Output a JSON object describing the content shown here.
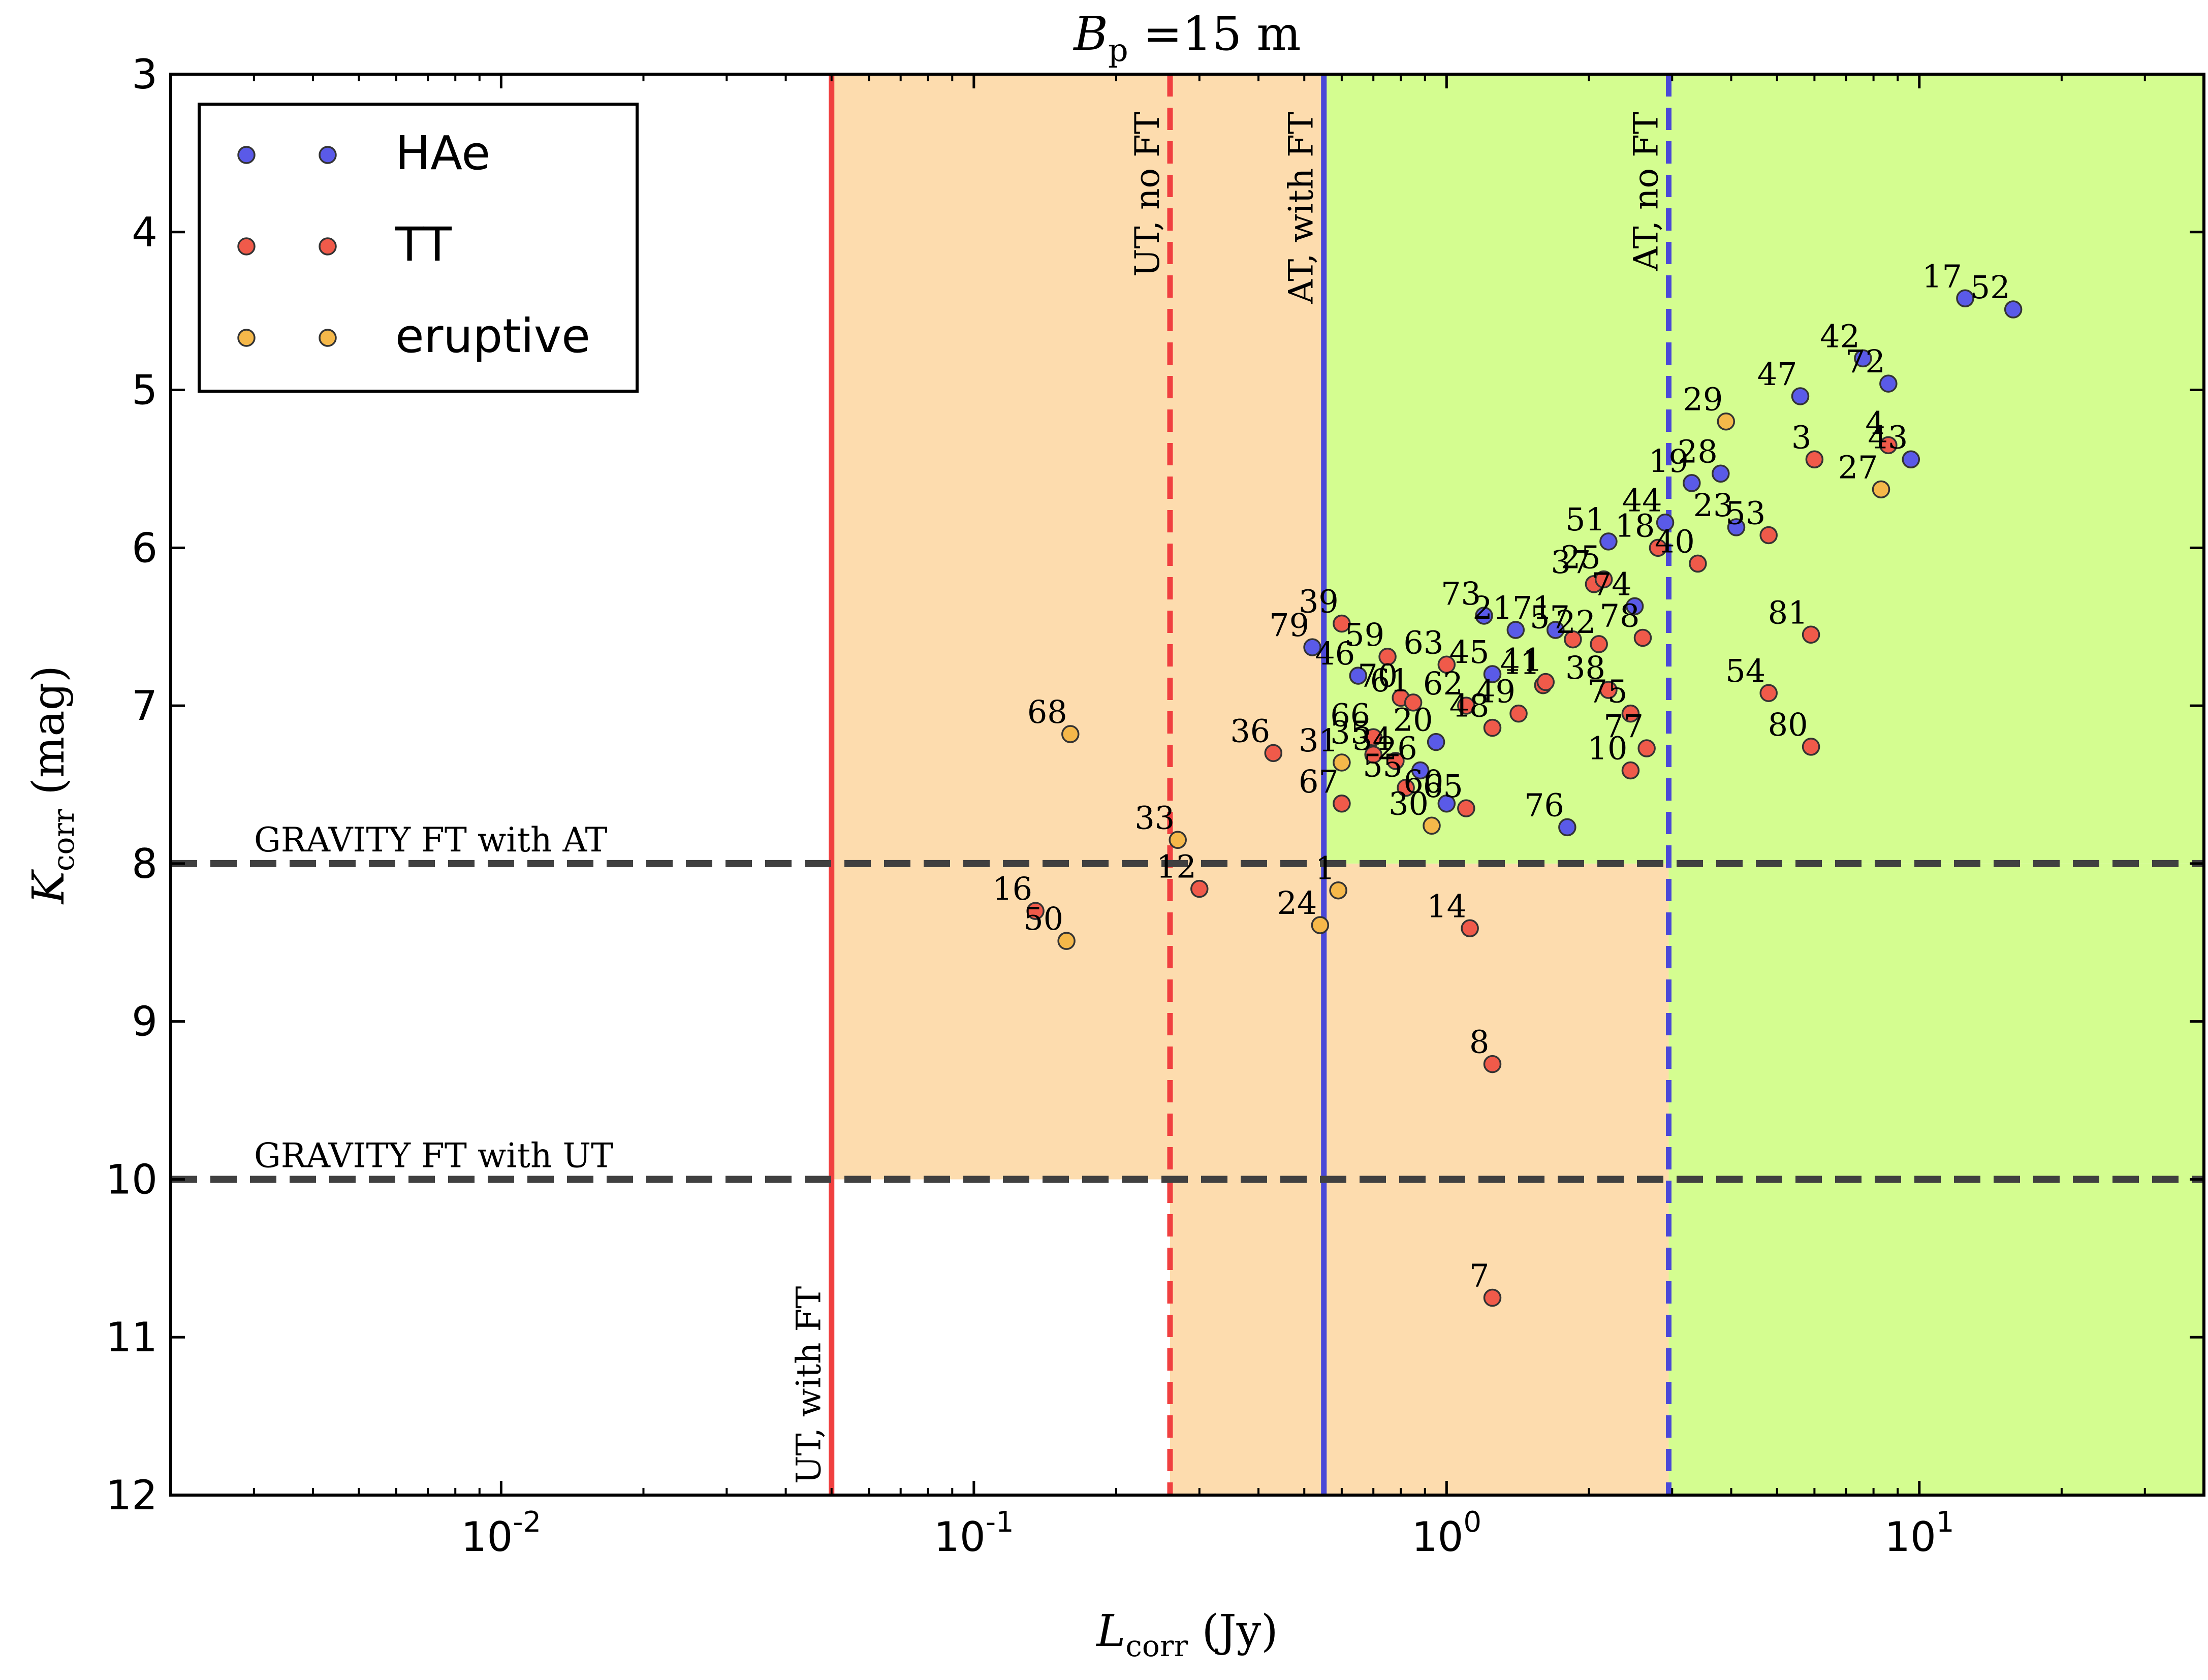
{
  "chart_data": {
    "type": "scatter",
    "title": {
      "main": "B",
      "sub": "p",
      "rest": " =15 m"
    },
    "xlabel": {
      "main": "L",
      "sub": "corr",
      "rest": " (Jy)"
    },
    "ylabel": {
      "main": "K",
      "sub": "corr",
      "rest": " (mag)"
    },
    "x_scale": "log",
    "xlim": [
      0.002,
      40
    ],
    "ylim": [
      12,
      3
    ],
    "y_inverted": true,
    "x_ticks": [
      {
        "value": 0.01,
        "base": "10",
        "exp": "-2"
      },
      {
        "value": 0.1,
        "base": "10",
        "exp": "-1"
      },
      {
        "value": 1,
        "base": "10",
        "exp": "0"
      },
      {
        "value": 10,
        "base": "10",
        "exp": "1"
      }
    ],
    "y_ticks": [
      "3",
      "4",
      "5",
      "6",
      "7",
      "8",
      "9",
      "10",
      "11",
      "12"
    ],
    "legend": {
      "placement": "top-left",
      "entries": [
        "HAe",
        "TT",
        "eruptive"
      ]
    },
    "series_colors": {
      "HAe": "#5a5ae8",
      "TT": "#f05a4a",
      "eruptive": "#f5b84a"
    },
    "regions": [
      {
        "color": "#fddcae",
        "x_from": 0.05,
        "x_to": 0.55,
        "y_from": 3,
        "y_to": 10
      },
      {
        "color": "#fddcae",
        "x_from": 0.26,
        "x_to": 2.95,
        "y_from": 8,
        "y_to": 12
      },
      {
        "color": "#d4fd90",
        "x_from": 0.55,
        "x_to": 40,
        "y_from": 3,
        "y_to": 8
      },
      {
        "color": "#d4fd90",
        "x_from": 2.95,
        "x_to": 40,
        "y_from": 8,
        "y_to": 12
      }
    ],
    "vertical_lines": [
      {
        "x": 0.05,
        "style": "solid",
        "color": "#f04040",
        "label": "UT, with FT",
        "label_pos": "bottom"
      },
      {
        "x": 0.26,
        "style": "dashed",
        "color": "#f04040",
        "label": "UT, no FT",
        "label_pos": "top"
      },
      {
        "x": 0.55,
        "style": "solid",
        "color": "#4a48d8",
        "label": "AT, with FT",
        "label_pos": "top"
      },
      {
        "x": 2.95,
        "style": "dashed",
        "color": "#4a48d8",
        "label": "AT, no FT",
        "label_pos": "top"
      }
    ],
    "horizontal_lines": [
      {
        "y": 8,
        "style": "dashed",
        "color": "#404040",
        "label": "GRAVITY FT with AT"
      },
      {
        "y": 10,
        "style": "dashed",
        "color": "#404040",
        "label": "GRAVITY FT with UT"
      }
    ],
    "points": [
      {
        "id": "17",
        "type": "HAe",
        "x": 12.5,
        "y": 4.42
      },
      {
        "id": "52",
        "type": "HAe",
        "x": 15.8,
        "y": 4.49
      },
      {
        "id": "42",
        "type": "HAe",
        "x": 7.6,
        "y": 4.8
      },
      {
        "id": "72",
        "type": "HAe",
        "x": 8.6,
        "y": 4.96
      },
      {
        "id": "47",
        "type": "HAe",
        "x": 5.6,
        "y": 5.04
      },
      {
        "id": "29",
        "type": "eruptive",
        "x": 3.9,
        "y": 5.2
      },
      {
        "id": "4",
        "type": "TT",
        "x": 8.6,
        "y": 5.35
      },
      {
        "id": "43",
        "type": "HAe",
        "x": 9.6,
        "y": 5.44
      },
      {
        "id": "3",
        "type": "TT",
        "x": 6.0,
        "y": 5.44
      },
      {
        "id": "27",
        "type": "eruptive",
        "x": 8.3,
        "y": 5.63
      },
      {
        "id": "28",
        "type": "HAe",
        "x": 3.8,
        "y": 5.53
      },
      {
        "id": "19",
        "type": "HAe",
        "x": 3.3,
        "y": 5.59
      },
      {
        "id": "23",
        "type": "HAe",
        "x": 4.1,
        "y": 5.87
      },
      {
        "id": "53",
        "type": "TT",
        "x": 4.8,
        "y": 5.92
      },
      {
        "id": "44",
        "type": "HAe",
        "x": 2.9,
        "y": 5.84
      },
      {
        "id": "51",
        "type": "HAe",
        "x": 2.2,
        "y": 5.96
      },
      {
        "id": "18",
        "type": "TT",
        "x": 2.8,
        "y": 6.0
      },
      {
        "id": "40",
        "type": "TT",
        "x": 3.4,
        "y": 6.1
      },
      {
        "id": "37",
        "type": "TT",
        "x": 2.05,
        "y": 6.23
      },
      {
        "id": "25",
        "type": "TT",
        "x": 2.15,
        "y": 6.2
      },
      {
        "id": "74",
        "type": "HAe",
        "x": 2.5,
        "y": 6.37
      },
      {
        "id": "73",
        "type": "HAe",
        "x": 1.2,
        "y": 6.43
      },
      {
        "id": "21",
        "type": "HAe",
        "x": 1.4,
        "y": 6.52
      },
      {
        "id": "71",
        "type": "HAe",
        "x": 1.7,
        "y": 6.52
      },
      {
        "id": "57",
        "type": "TT",
        "x": 1.85,
        "y": 6.58
      },
      {
        "id": "22",
        "type": "TT",
        "x": 2.1,
        "y": 6.61
      },
      {
        "id": "78",
        "type": "TT",
        "x": 2.6,
        "y": 6.57
      },
      {
        "id": "81",
        "type": "TT",
        "x": 5.9,
        "y": 6.55
      },
      {
        "id": "39",
        "type": "TT",
        "x": 0.6,
        "y": 6.48
      },
      {
        "id": "79",
        "type": "HAe",
        "x": 0.52,
        "y": 6.63
      },
      {
        "id": "59",
        "type": "TT",
        "x": 0.75,
        "y": 6.69
      },
      {
        "id": "46",
        "type": "HAe",
        "x": 0.65,
        "y": 6.81
      },
      {
        "id": "63",
        "type": "TT",
        "x": 1.0,
        "y": 6.74
      },
      {
        "id": "45",
        "type": "HAe",
        "x": 1.25,
        "y": 6.8
      },
      {
        "id": "41",
        "type": "TT",
        "x": 1.6,
        "y": 6.87
      },
      {
        "id": "11",
        "type": "TT",
        "x": 1.62,
        "y": 6.85
      },
      {
        "id": "38",
        "type": "TT",
        "x": 2.2,
        "y": 6.9
      },
      {
        "id": "54",
        "type": "TT",
        "x": 4.8,
        "y": 6.92
      },
      {
        "id": "70",
        "type": "TT",
        "x": 0.8,
        "y": 6.95
      },
      {
        "id": "61",
        "type": "TT",
        "x": 0.85,
        "y": 6.98
      },
      {
        "id": "62",
        "type": "TT",
        "x": 1.1,
        "y": 7.0
      },
      {
        "id": "49",
        "type": "TT",
        "x": 1.42,
        "y": 7.05
      },
      {
        "id": "48",
        "type": "TT",
        "x": 1.25,
        "y": 7.14
      },
      {
        "id": "75",
        "type": "TT",
        "x": 2.45,
        "y": 7.05
      },
      {
        "id": "80",
        "type": "TT",
        "x": 5.9,
        "y": 7.26
      },
      {
        "id": "68",
        "type": "eruptive",
        "x": 0.16,
        "y": 7.18
      },
      {
        "id": "36",
        "type": "TT",
        "x": 0.43,
        "y": 7.3
      },
      {
        "id": "66",
        "type": "TT",
        "x": 0.7,
        "y": 7.2
      },
      {
        "id": "20",
        "type": "HAe",
        "x": 0.95,
        "y": 7.23
      },
      {
        "id": "77",
        "type": "TT",
        "x": 2.65,
        "y": 7.27
      },
      {
        "id": "10",
        "type": "TT",
        "x": 2.45,
        "y": 7.41
      },
      {
        "id": "31",
        "type": "eruptive",
        "x": 0.6,
        "y": 7.36
      },
      {
        "id": "35",
        "type": "TT",
        "x": 0.7,
        "y": 7.31
      },
      {
        "id": "34",
        "type": "TT",
        "x": 0.78,
        "y": 7.35
      },
      {
        "id": "26",
        "type": "HAe",
        "x": 0.88,
        "y": 7.41
      },
      {
        "id": "55",
        "type": "TT",
        "x": 0.82,
        "y": 7.52
      },
      {
        "id": "67",
        "type": "TT",
        "x": 0.6,
        "y": 7.62
      },
      {
        "id": "60",
        "type": "HAe",
        "x": 1.0,
        "y": 7.62
      },
      {
        "id": "65",
        "type": "TT",
        "x": 1.1,
        "y": 7.65
      },
      {
        "id": "30",
        "type": "eruptive",
        "x": 0.93,
        "y": 7.76
      },
      {
        "id": "76",
        "type": "HAe",
        "x": 1.8,
        "y": 7.77
      },
      {
        "id": "33",
        "type": "eruptive",
        "x": 0.27,
        "y": 7.85
      },
      {
        "id": "1",
        "type": "eruptive",
        "x": 0.59,
        "y": 8.17
      },
      {
        "id": "12",
        "type": "TT",
        "x": 0.3,
        "y": 8.16
      },
      {
        "id": "16",
        "type": "TT",
        "x": 0.135,
        "y": 8.3
      },
      {
        "id": "24",
        "type": "eruptive",
        "x": 0.54,
        "y": 8.39
      },
      {
        "id": "14",
        "type": "TT",
        "x": 1.12,
        "y": 8.41
      },
      {
        "id": "50",
        "type": "eruptive",
        "x": 0.157,
        "y": 8.49
      },
      {
        "id": "8",
        "type": "TT",
        "x": 1.25,
        "y": 9.27
      },
      {
        "id": "7",
        "type": "TT",
        "x": 1.25,
        "y": 10.75
      }
    ]
  }
}
